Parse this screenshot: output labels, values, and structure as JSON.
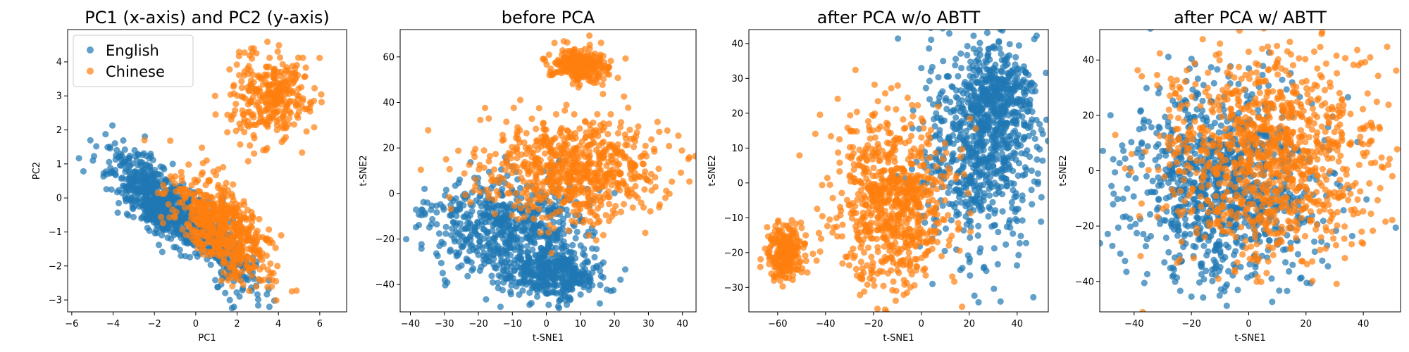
{
  "colors": {
    "english": "#1f77b4",
    "chinese": "#ff7f0e"
  },
  "legend": {
    "placement": "top-left",
    "entries": [
      "English",
      "Chinese"
    ]
  },
  "chart_data": [
    {
      "type": "scatter",
      "title": "PC1 (x-axis) and PC2 (y-axis)",
      "xlabel": "PC1",
      "ylabel": "PC2",
      "xlim": [
        -6.2,
        7.3
      ],
      "ylim": [
        -3.35,
        4.95
      ],
      "xticks": [
        -6,
        -4,
        -2,
        0,
        2,
        4,
        6
      ],
      "yticks": [
        -3,
        -2,
        -1,
        0,
        1,
        2,
        3,
        4
      ],
      "series": [
        {
          "name": "English",
          "n": 900,
          "clusters": [
            {
              "cx": -1.8,
              "cy": -0.1,
              "sx": 1.3,
              "sy": 0.45,
              "rot": -0.45,
              "w": 0.75
            },
            {
              "cx": 1.2,
              "cy": -1.5,
              "sx": 1.2,
              "sy": 0.4,
              "rot": -0.5,
              "w": 0.25
            }
          ]
        },
        {
          "name": "Chinese",
          "n": 900,
          "clusters": [
            {
              "cx": 1.2,
              "cy": -0.8,
              "sx": 1.3,
              "sy": 0.55,
              "rot": -0.5,
              "w": 0.65
            },
            {
              "cx": 3.6,
              "cy": 3.0,
              "sx": 1.0,
              "sy": 0.7,
              "rot": 0,
              "w": 0.35
            }
          ]
        }
      ]
    },
    {
      "type": "scatter",
      "title": "before PCA",
      "xlabel": "t-SNE1",
      "ylabel": "t-SNE2",
      "xlim": [
        -43,
        44
      ],
      "ylim": [
        -52,
        72
      ],
      "xticks": [
        -40,
        -30,
        -20,
        -10,
        0,
        10,
        20,
        30,
        40
      ],
      "yticks": [
        -40,
        -20,
        0,
        20,
        40,
        60
      ],
      "series": [
        {
          "name": "English",
          "n": 1000,
          "clusters": [
            {
              "cx": -12,
              "cy": -15,
              "sx": 11,
              "sy": 11,
              "rot": 0,
              "w": 0.6
            },
            {
              "cx": 2,
              "cy": -35,
              "sx": 7,
              "sy": 6,
              "rot": 0,
              "w": 0.4
            }
          ]
        },
        {
          "name": "Chinese",
          "n": 1000,
          "clusters": [
            {
              "cx": 10,
              "cy": 57,
              "sx": 4,
              "sy": 3.5,
              "rot": 0,
              "w": 0.3
            },
            {
              "cx": 8,
              "cy": 10,
              "sx": 14,
              "sy": 11,
              "rot": 0,
              "w": 0.7
            }
          ]
        }
      ]
    },
    {
      "type": "scatter",
      "title": "after PCA w/o ABTT",
      "xlabel": "t-SNE1",
      "ylabel": "t-SNE2",
      "xlim": [
        -72,
        53
      ],
      "ylim": [
        -37,
        44
      ],
      "xticks": [
        -60,
        -40,
        -20,
        0,
        20,
        40
      ],
      "yticks": [
        -30,
        -20,
        -10,
        0,
        10,
        20,
        30,
        40
      ],
      "series": [
        {
          "name": "English",
          "n": 1000,
          "clusters": [
            {
              "cx": 25,
              "cy": 10,
              "sx": 13,
              "sy": 15,
              "rot": 0,
              "w": 0.7
            },
            {
              "cx": 32,
              "cy": 25,
              "sx": 7,
              "sy": 7,
              "rot": 0,
              "w": 0.3
            }
          ]
        },
        {
          "name": "Chinese",
          "n": 1000,
          "clusters": [
            {
              "cx": -57,
              "cy": -20,
              "sx": 4,
              "sy": 4,
              "rot": 0,
              "w": 0.25
            },
            {
              "cx": -12,
              "cy": -5,
              "sx": 12,
              "sy": 12,
              "rot": 0,
              "w": 0.75
            }
          ]
        }
      ]
    },
    {
      "type": "scatter",
      "title": "after PCA w/ ABTT",
      "xlabel": "t-SNE1",
      "ylabel": "t-SNE2",
      "xlim": [
        -52,
        53
      ],
      "ylim": [
        -51,
        51
      ],
      "xticks": [
        -40,
        -20,
        0,
        20,
        40
      ],
      "yticks": [
        -40,
        -20,
        0,
        20,
        40
      ],
      "series": [
        {
          "name": "English",
          "n": 1000,
          "clusters": [
            {
              "cx": -8,
              "cy": -5,
              "sx": 17,
              "sy": 17,
              "rot": 0,
              "w": 1.0
            }
          ]
        },
        {
          "name": "Chinese",
          "n": 1000,
          "clusters": [
            {
              "cx": 8,
              "cy": 5,
              "sx": 19,
              "sy": 19,
              "rot": 0,
              "w": 1.0
            }
          ]
        }
      ]
    }
  ]
}
